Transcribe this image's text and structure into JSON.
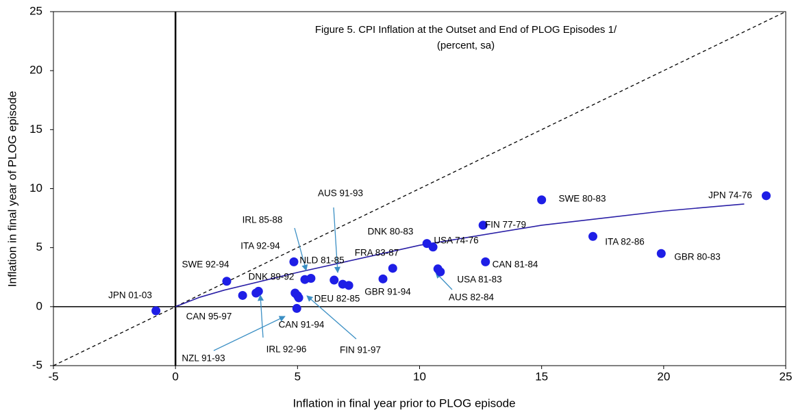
{
  "chart_data": {
    "type": "scatter",
    "title": "Figure 5. CPI Inflation at the Outset and End of PLOG Episodes 1/",
    "subtitle": "(percent, sa)",
    "x_label": "Inflation in final year prior to PLOG episode",
    "y_label": "Inflation in final year of PLOG episode",
    "xlim": [
      -5,
      25
    ],
    "ylim": [
      -5,
      25
    ],
    "xticks": [
      -5,
      0,
      5,
      10,
      15,
      20,
      25
    ],
    "yticks": [
      -5,
      0,
      5,
      10,
      15,
      20,
      25
    ],
    "color": "#1e1ee6",
    "x": [
      -0.8,
      2.1,
      2.75,
      3.4,
      3.3,
      4.85,
      5.3,
      5.55,
      4.9,
      5.0,
      5.05,
      4.97,
      6.5,
      6.85,
      7.1,
      8.5,
      8.9,
      10.3,
      10.55,
      10.75,
      10.85,
      12.6,
      12.7,
      15,
      17.1,
      19.9,
      24.2
    ],
    "y": [
      -0.35,
      2.15,
      0.95,
      1.3,
      1.15,
      3.8,
      2.3,
      2.4,
      1.15,
      0.93,
      0.75,
      -0.15,
      2.25,
      1.9,
      1.8,
      2.35,
      3.25,
      5.35,
      5.05,
      3.2,
      2.95,
      6.9,
      3.8,
      9.05,
      5.95,
      4.5,
      9.4
    ],
    "labels": [
      "JPN 01-03",
      "SWE 92-94",
      "CAN 95-97",
      "IRL 92-96",
      "NZL 91-93",
      "ITA 92-94",
      "DNK 89-92",
      "IRL 85-88",
      "CAN 91-94",
      "DEU 82-85",
      "FIN 91-97",
      null,
      "NLD 81-85",
      "AUS 91-93",
      null,
      "GBR 91-94",
      "FRA 83-87",
      "DNK 80-83",
      "USA 74-76",
      "USA 81-83",
      "AUS 82-84",
      "FIN 77-79",
      "CAN 81-84",
      "SWE 80-83",
      "ITA 82-86",
      "GBR 80-83",
      "JPN 74-76"
    ],
    "trend_line": {
      "color": "#2a1fa6",
      "x": [
        0,
        1,
        2,
        5,
        10,
        15,
        20,
        23.3
      ],
      "y": [
        0,
        0.8,
        1.4,
        2.9,
        5.2,
        6.9,
        8.1,
        8.7
      ]
    }
  }
}
